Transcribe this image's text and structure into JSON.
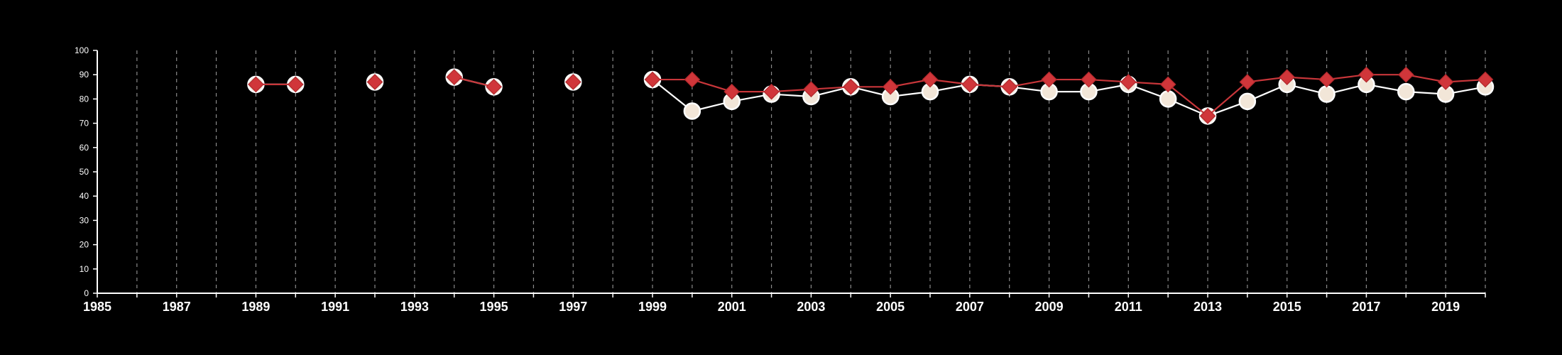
{
  "chart_data": {
    "type": "line",
    "title": "",
    "xlabel": "",
    "ylabel": "",
    "xlim": [
      1985,
      2020
    ],
    "ylim": [
      0,
      100
    ],
    "x_tick_labels": [
      "1985",
      "1987",
      "1989",
      "1991",
      "1993",
      "1995",
      "1997",
      "1999",
      "2001",
      "2003",
      "2005",
      "2007",
      "2009",
      "2011",
      "2013",
      "2015",
      "2017",
      "2019"
    ],
    "y_tick_labels": [
      "0",
      "10",
      "20",
      "30",
      "40",
      "50",
      "60",
      "70",
      "80",
      "90",
      "100"
    ],
    "grid": "vertical dashed lines at each year",
    "legend": "none",
    "series": [
      {
        "marker": "circle",
        "line_color": "#ffffff",
        "marker_fill": "#f2e6d8",
        "marker_stroke": "#ffffff",
        "points": [
          {
            "x": 1989,
            "y": 86
          },
          {
            "x": 1990,
            "y": 86
          },
          {
            "x": 1992,
            "y": 87
          },
          {
            "x": 1994,
            "y": 89
          },
          {
            "x": 1995,
            "y": 85
          },
          {
            "x": 1997,
            "y": 87
          },
          {
            "x": 1999,
            "y": 88
          },
          {
            "x": 2000,
            "y": 75
          },
          {
            "x": 2001,
            "y": 79
          },
          {
            "x": 2002,
            "y": 82
          },
          {
            "x": 2003,
            "y": 81
          },
          {
            "x": 2004,
            "y": 85
          },
          {
            "x": 2005,
            "y": 81
          },
          {
            "x": 2006,
            "y": 83
          },
          {
            "x": 2007,
            "y": 86
          },
          {
            "x": 2008,
            "y": 85
          },
          {
            "x": 2009,
            "y": 83
          },
          {
            "x": 2010,
            "y": 83
          },
          {
            "x": 2011,
            "y": 86
          },
          {
            "x": 2012,
            "y": 80
          },
          {
            "x": 2013,
            "y": 73
          },
          {
            "x": 2014,
            "y": 79
          },
          {
            "x": 2015,
            "y": 86
          },
          {
            "x": 2016,
            "y": 82
          },
          {
            "x": 2017,
            "y": 86
          },
          {
            "x": 2018,
            "y": 83
          },
          {
            "x": 2019,
            "y": 82
          },
          {
            "x": 2020,
            "y": 85
          }
        ]
      },
      {
        "marker": "diamond",
        "line_color": "#c8363a",
        "marker_fill": "#d0363a",
        "marker_stroke": "#b0282c",
        "points": [
          {
            "x": 1989,
            "y": 86
          },
          {
            "x": 1990,
            "y": 86
          },
          {
            "x": 1992,
            "y": 87
          },
          {
            "x": 1994,
            "y": 89
          },
          {
            "x": 1995,
            "y": 85
          },
          {
            "x": 1997,
            "y": 87
          },
          {
            "x": 1999,
            "y": 88
          },
          {
            "x": 2000,
            "y": 88
          },
          {
            "x": 2001,
            "y": 83
          },
          {
            "x": 2002,
            "y": 83
          },
          {
            "x": 2003,
            "y": 84
          },
          {
            "x": 2004,
            "y": 85
          },
          {
            "x": 2005,
            "y": 85
          },
          {
            "x": 2006,
            "y": 88
          },
          {
            "x": 2007,
            "y": 86
          },
          {
            "x": 2008,
            "y": 85
          },
          {
            "x": 2009,
            "y": 88
          },
          {
            "x": 2010,
            "y": 88
          },
          {
            "x": 2011,
            "y": 87
          },
          {
            "x": 2012,
            "y": 86
          },
          {
            "x": 2013,
            "y": 73
          },
          {
            "x": 2014,
            "y": 87
          },
          {
            "x": 2015,
            "y": 89
          },
          {
            "x": 2016,
            "y": 88
          },
          {
            "x": 2017,
            "y": 90
          },
          {
            "x": 2018,
            "y": 90
          },
          {
            "x": 2019,
            "y": 87
          },
          {
            "x": 2020,
            "y": 88
          }
        ]
      }
    ]
  }
}
